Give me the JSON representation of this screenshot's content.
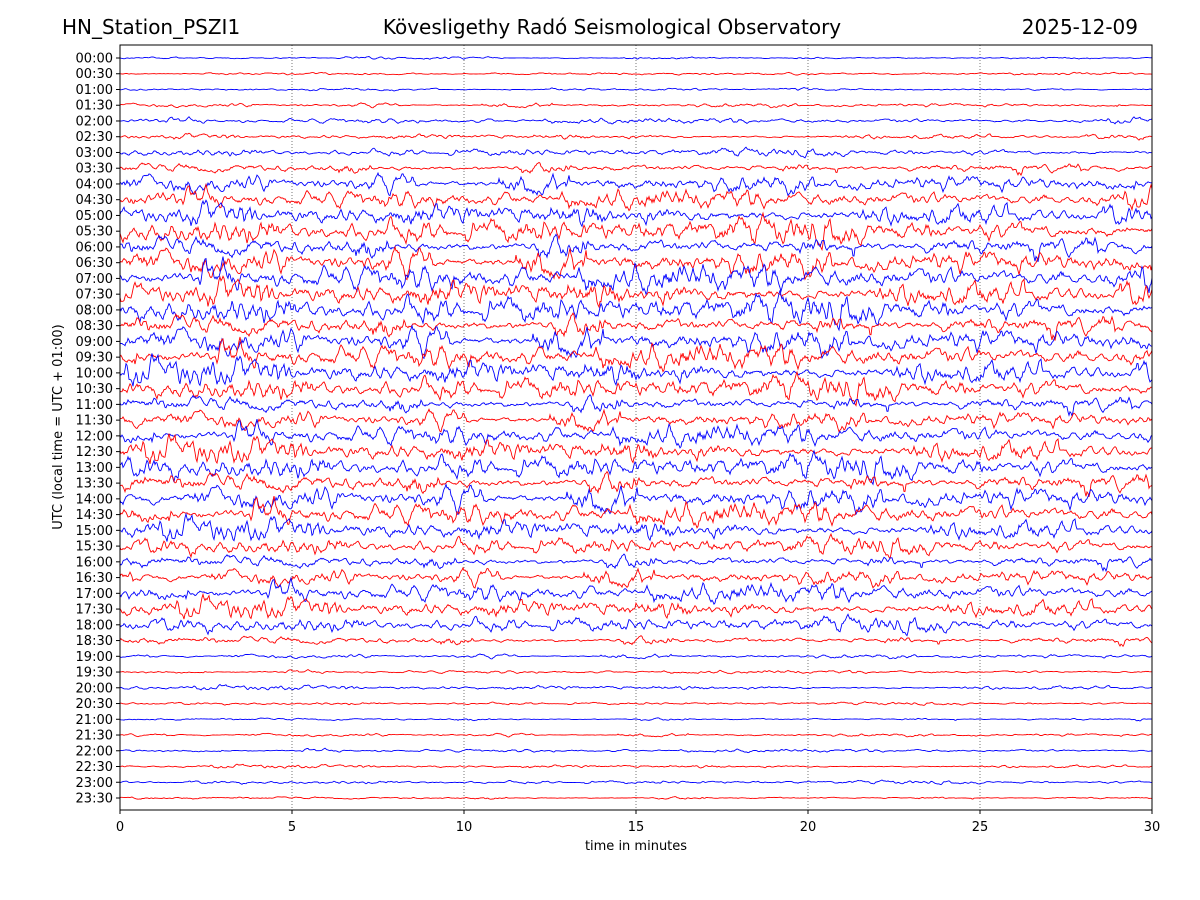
{
  "header": {
    "station": "HN_Station_PSZI1",
    "observatory": "Kövesligethy Radó Seismological Observatory",
    "date": "2025-12-09"
  },
  "chart_data": {
    "type": "line",
    "title": "Kövesligethy Radó Seismological Observatory",
    "xlabel": "time in minutes",
    "ylabel": "UTC (local time = UTC + 01:00)",
    "xlim": [
      0,
      30
    ],
    "x_ticks": [
      "0",
      "5",
      "10",
      "15",
      "20",
      "25",
      "30"
    ],
    "x_tick_values": [
      0,
      5,
      10,
      15,
      20,
      25,
      30
    ],
    "grid": "vertical dotted",
    "row_labels": [
      "00:00",
      "00:30",
      "01:00",
      "01:30",
      "02:00",
      "02:30",
      "03:00",
      "03:30",
      "04:00",
      "04:30",
      "05:00",
      "05:30",
      "06:00",
      "06:30",
      "07:00",
      "07:30",
      "08:00",
      "08:30",
      "09:00",
      "09:30",
      "10:00",
      "10:30",
      "11:00",
      "11:30",
      "12:00",
      "12:30",
      "13:00",
      "13:30",
      "14:00",
      "14:30",
      "15:00",
      "15:30",
      "16:00",
      "16:30",
      "17:00",
      "17:30",
      "18:00",
      "18:30",
      "19:00",
      "19:30",
      "20:00",
      "20:30",
      "21:00",
      "21:30",
      "22:00",
      "22:30",
      "23:00",
      "23:30"
    ],
    "relative_amplitude": [
      0.12,
      0.1,
      0.12,
      0.2,
      0.25,
      0.25,
      0.35,
      0.6,
      0.9,
      0.9,
      1.1,
      1.2,
      1.3,
      1.3,
      1.3,
      1.3,
      1.3,
      1.3,
      1.3,
      1.2,
      1.2,
      1.1,
      1.0,
      0.9,
      1.0,
      1.1,
      1.1,
      1.2,
      1.2,
      1.1,
      1.0,
      0.8,
      0.8,
      0.8,
      0.9,
      0.9,
      0.7,
      0.5,
      0.2,
      0.15,
      0.2,
      0.12,
      0.15,
      0.15,
      0.15,
      0.15,
      0.15,
      0.15
    ],
    "series_colors": [
      "#0000ff",
      "#ff0000"
    ]
  }
}
